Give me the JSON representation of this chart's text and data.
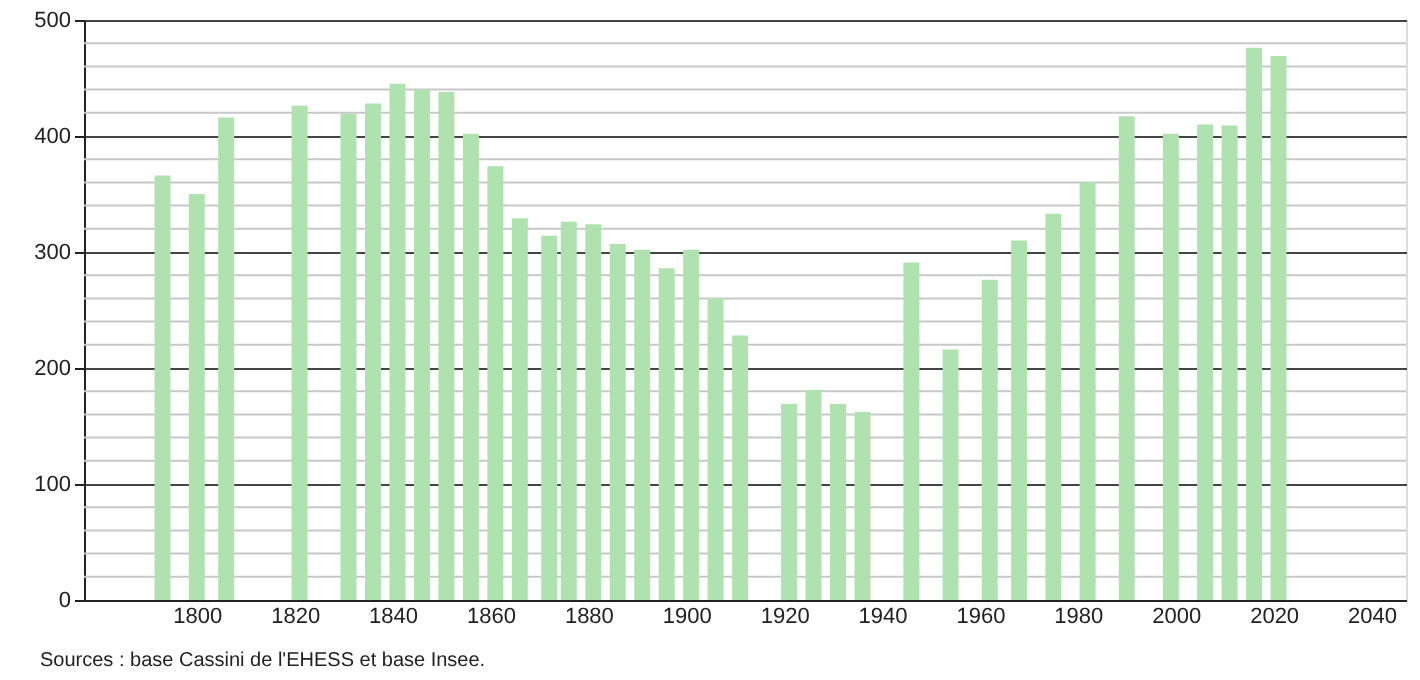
{
  "chart_data": {
    "type": "bar",
    "x": [
      1793,
      1800,
      1806,
      1821,
      1831,
      1836,
      1841,
      1846,
      1851,
      1856,
      1861,
      1866,
      1872,
      1876,
      1881,
      1886,
      1891,
      1896,
      1901,
      1906,
      1911,
      1921,
      1926,
      1931,
      1936,
      1946,
      1954,
      1962,
      1968,
      1975,
      1982,
      1990,
      1999,
      2006,
      2011,
      2016,
      2021
    ],
    "values": [
      366,
      350,
      416,
      426,
      419,
      428,
      445,
      440,
      438,
      402,
      374,
      329,
      314,
      326,
      324,
      307,
      302,
      286,
      302,
      260,
      228,
      169,
      181,
      169,
      162,
      291,
      216,
      276,
      310,
      333,
      360,
      417,
      402,
      410,
      409,
      476,
      469
    ],
    "color": "#b0e2b0",
    "xlim": [
      1779,
      2045
    ],
    "xticks": [
      1800,
      1820,
      1840,
      1860,
      1880,
      1900,
      1920,
      1940,
      1960,
      1980,
      2000,
      2020,
      2040
    ],
    "ylim": [
      0,
      500
    ],
    "yticks": [
      0,
      100,
      200,
      300,
      400,
      500
    ],
    "grid": "y",
    "annotations": [
      "Sources : base Cassini de l'EHESS et base Insee."
    ]
  }
}
